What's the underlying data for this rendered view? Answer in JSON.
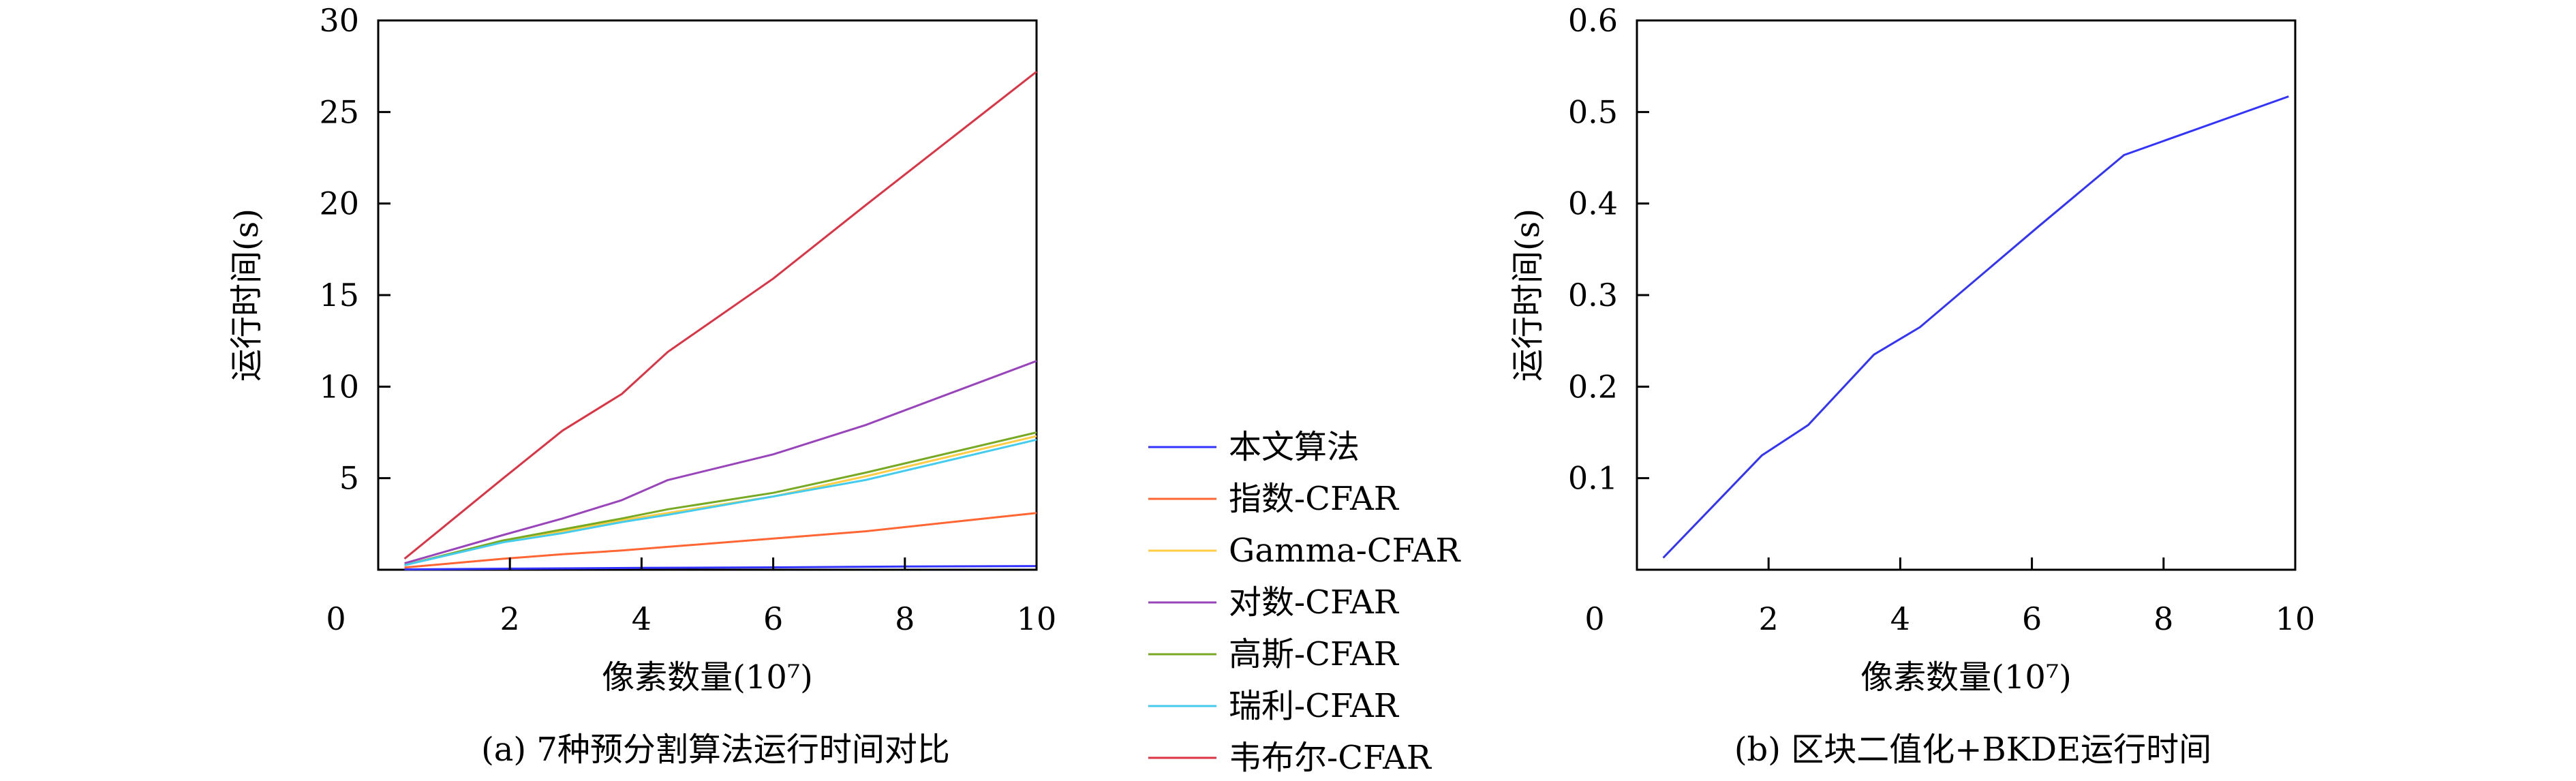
{
  "chart_data": [
    {
      "type": "line",
      "title": "",
      "caption": "(a) 7种预分割算法运行时间对比",
      "xlabel": "像素数量(10⁷)",
      "ylabel": "运行时间(s)",
      "xlim": [
        0,
        10
      ],
      "ylim": [
        0,
        30
      ],
      "x_ticks": [
        "0",
        "2",
        "4",
        "6",
        "8",
        "10"
      ],
      "y_ticks": [
        "5",
        "10",
        "15",
        "20",
        "25",
        "30"
      ],
      "grid": false,
      "legend": "outside-right",
      "series": [
        {
          "name": "本文算法",
          "color": "#3333ff",
          "x": [
            0.4,
            2.0,
            4.0,
            6.0,
            8.0,
            10.0
          ],
          "y": [
            0.02,
            0.06,
            0.1,
            0.13,
            0.18,
            0.2
          ]
        },
        {
          "name": "指数-CFAR",
          "color": "#ff6633",
          "x": [
            0.4,
            1.9,
            2.8,
            3.7,
            4.4,
            6.0,
            7.4,
            10.0
          ],
          "y": [
            0.12,
            0.6,
            0.85,
            1.05,
            1.25,
            1.7,
            2.1,
            3.1
          ]
        },
        {
          "name": "Gamma-CFAR",
          "color": "#ffcc44",
          "x": [
            0.4,
            1.9,
            2.8,
            3.7,
            4.4,
            6.0,
            7.4,
            10.0
          ],
          "y": [
            0.25,
            1.6,
            2.1,
            2.7,
            3.1,
            4.0,
            5.1,
            7.3
          ]
        },
        {
          "name": "对数-CFAR",
          "color": "#9944bb",
          "x": [
            0.4,
            1.9,
            2.8,
            3.7,
            4.4,
            6.0,
            7.4,
            10.0
          ],
          "y": [
            0.35,
            1.9,
            2.8,
            3.8,
            4.9,
            6.3,
            7.9,
            11.4
          ]
        },
        {
          "name": "高斯-CFAR",
          "color": "#77aa22",
          "x": [
            0.4,
            1.9,
            2.8,
            3.7,
            4.4,
            6.0,
            7.4,
            10.0
          ],
          "y": [
            0.25,
            1.6,
            2.2,
            2.8,
            3.3,
            4.2,
            5.3,
            7.5
          ]
        },
        {
          "name": "瑞利-CFAR",
          "color": "#44ccee",
          "x": [
            0.4,
            1.9,
            2.8,
            3.7,
            4.4,
            6.0,
            7.4,
            10.0
          ],
          "y": [
            0.25,
            1.5,
            2.0,
            2.6,
            3.0,
            4.0,
            4.9,
            7.1
          ]
        },
        {
          "name": "韦布尔-CFAR",
          "color": "#dd3344",
          "x": [
            0.4,
            1.9,
            2.8,
            3.7,
            4.4,
            6.0,
            7.4,
            10.0
          ],
          "y": [
            0.6,
            5.0,
            7.6,
            9.6,
            11.9,
            15.9,
            19.9,
            27.2
          ]
        }
      ]
    },
    {
      "type": "line",
      "title": "",
      "caption": "(b) 区块二值化+BKDE运行时间",
      "xlabel": "像素数量(10⁷)",
      "ylabel": "运行时间(s)",
      "xlim": [
        0,
        10
      ],
      "ylim": [
        0,
        0.6
      ],
      "x_ticks": [
        "0",
        "2",
        "4",
        "6",
        "8",
        "10"
      ],
      "y_ticks": [
        "0.1",
        "0.2",
        "0.3",
        "0.4",
        "0.5",
        "0.6"
      ],
      "grid": false,
      "legend": "none",
      "series": [
        {
          "color": "#3333ff",
          "x": [
            0.4,
            1.9,
            2.6,
            3.6,
            4.3,
            6.1,
            7.4,
            9.9
          ],
          "y": [
            0.013,
            0.125,
            0.158,
            0.235,
            0.265,
            0.375,
            0.453,
            0.517
          ]
        }
      ]
    }
  ]
}
